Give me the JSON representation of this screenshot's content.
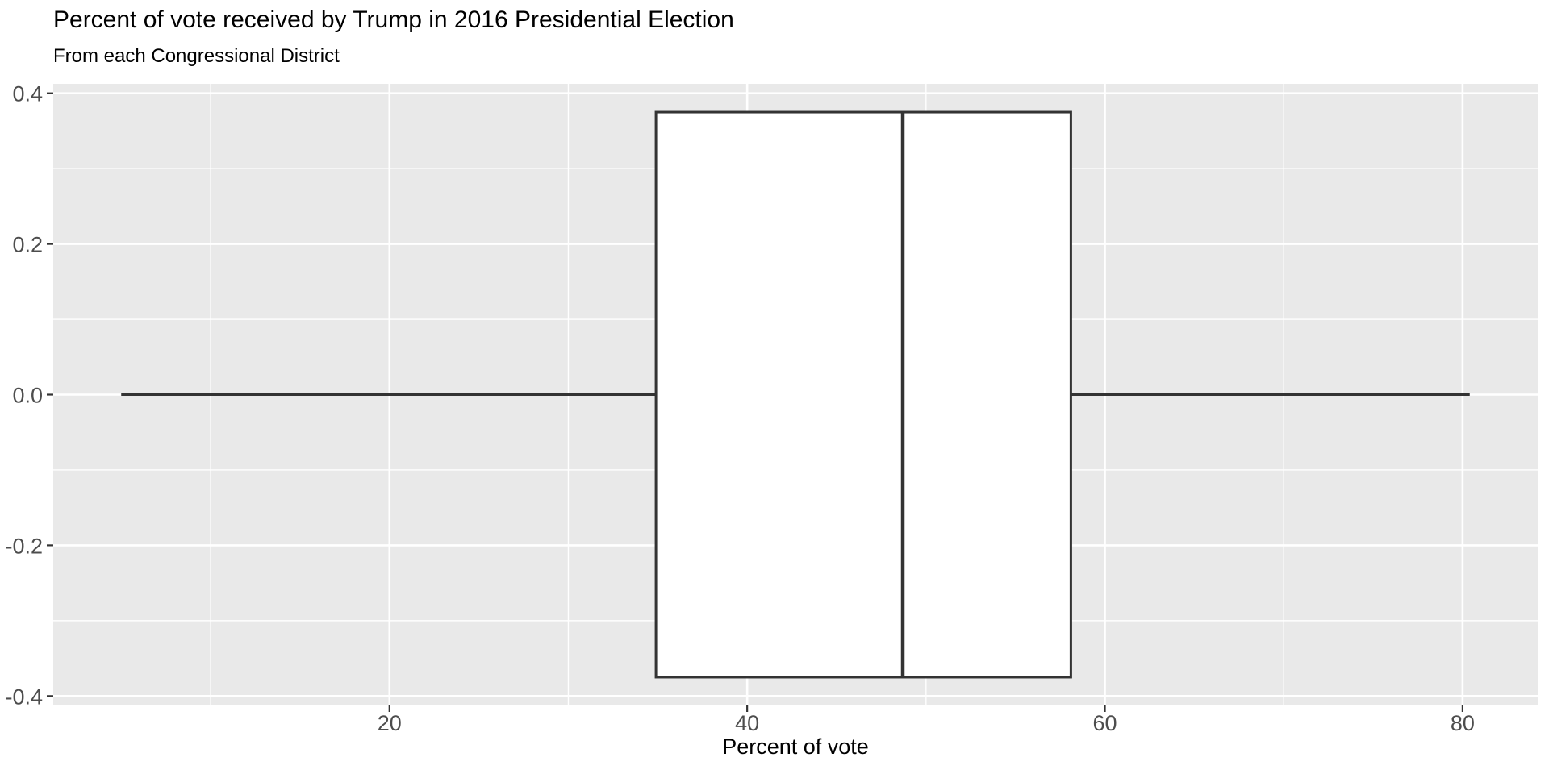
{
  "chart_data": {
    "type": "boxplot",
    "orientation": "horizontal",
    "title": "Percent of vote received by Trump in 2016 Presidential Election",
    "subtitle": "From each Congressional District",
    "xlabel": "Percent of vote",
    "ylabel": "",
    "xlim": [
      1.2,
      84.2
    ],
    "ylim": [
      -0.4125,
      0.4125
    ],
    "x_major_ticks": [
      20,
      40,
      60,
      80
    ],
    "x_tick_labels": [
      "20",
      "40",
      "60",
      "80"
    ],
    "x_minor_ticks": [
      10,
      30,
      50,
      70
    ],
    "y_major_ticks": [
      0.4,
      0.2,
      0.0,
      -0.2,
      -0.4
    ],
    "y_tick_labels": [
      "0.4",
      "0.2",
      "0.0",
      "-0.2",
      "-0.4"
    ],
    "y_minor_ticks": [
      0.3,
      0.1,
      -0.1,
      -0.3
    ],
    "grid": true,
    "legend": "none",
    "series": [
      {
        "name": "trump-vote-share-by-district",
        "center_y": 0,
        "box_half_height": 0.375,
        "stats": {
          "min": 5.0,
          "q1": 34.9,
          "median": 48.7,
          "q3": 58.1,
          "max": 80.4
        },
        "outliers": []
      }
    ],
    "colors": {
      "panel_bg": "#E9E9E9",
      "grid": "#FFFFFF",
      "box_fill": "#FFFFFF",
      "box_stroke": "#333333",
      "tick_mark": "#333333",
      "tick_label": "#4D4D4D",
      "title": "#000000",
      "axis_title": "#000000"
    }
  }
}
